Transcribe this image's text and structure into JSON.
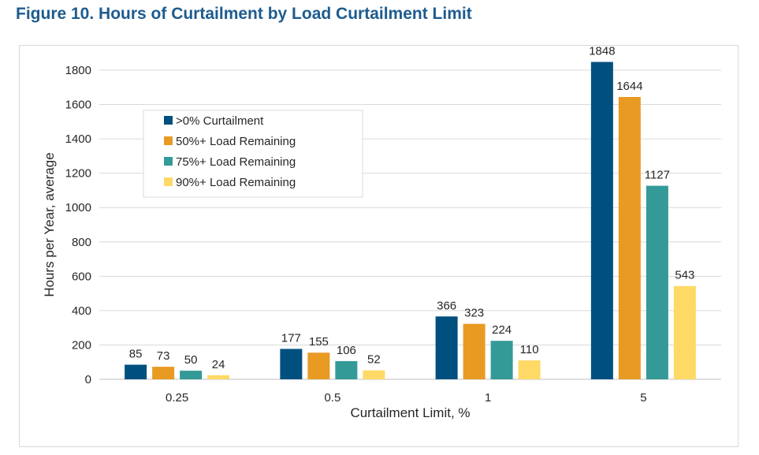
{
  "figure_title": "Figure 10. Hours of Curtailment by Load Curtailment Limit",
  "chart_data": {
    "type": "bar",
    "title": "",
    "xlabel": "Curtailment Limit, %",
    "ylabel": "Hours per Year, average",
    "categories": [
      "0.25",
      "0.5",
      "1",
      "5"
    ],
    "ylim": [
      0,
      1800
    ],
    "yticks": [
      0,
      200,
      400,
      600,
      800,
      1000,
      1200,
      1400,
      1600,
      1800
    ],
    "grid": true,
    "legend_position": "upper-left",
    "series": [
      {
        "name": ">0% Curtailment",
        "color": "#00507f",
        "values": [
          85,
          177,
          366,
          1848
        ]
      },
      {
        "name": "50%+ Load Remaining",
        "color": "#e89a23",
        "values": [
          73,
          155,
          323,
          1644
        ]
      },
      {
        "name": "75%+ Load Remaining",
        "color": "#339a98",
        "values": [
          50,
          106,
          224,
          1127
        ]
      },
      {
        "name": "90%+ Load Remaining",
        "color": "#ffd966",
        "values": [
          24,
          52,
          110,
          543
        ]
      }
    ]
  }
}
